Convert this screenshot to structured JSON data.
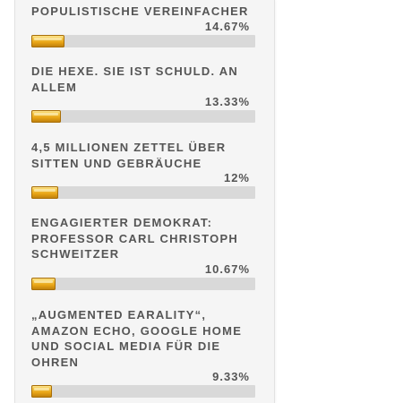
{
  "poll": {
    "fill_color": "#e8a416",
    "track_color": "#d9d9d9",
    "options": [
      {
        "label": "POPULISTISCHE VEREINFACHER",
        "percent_text": "14.67%",
        "value": 14.67
      },
      {
        "label": "DIE HEXE. SIE IST SCHULD. AN ALLEM",
        "percent_text": "13.33%",
        "value": 13.33
      },
      {
        "label": "4,5 MILLIONEN ZETTEL ÜBER SITTEN UND GEBRÄUCHE",
        "percent_text": "12%",
        "value": 12
      },
      {
        "label": "ENGAGIERTER DEMOKRAT: PROFESSOR CARL CHRISTOPH SCHWEITZER",
        "percent_text": "10.67%",
        "value": 10.67
      },
      {
        "label": "„AUGMENTED EARALITY“, AMAZON ECHO, GOOGLE HOME UND SOCIAL MEDIA FÜR DIE OHREN",
        "percent_text": "9.33%",
        "value": 9.33
      }
    ]
  }
}
